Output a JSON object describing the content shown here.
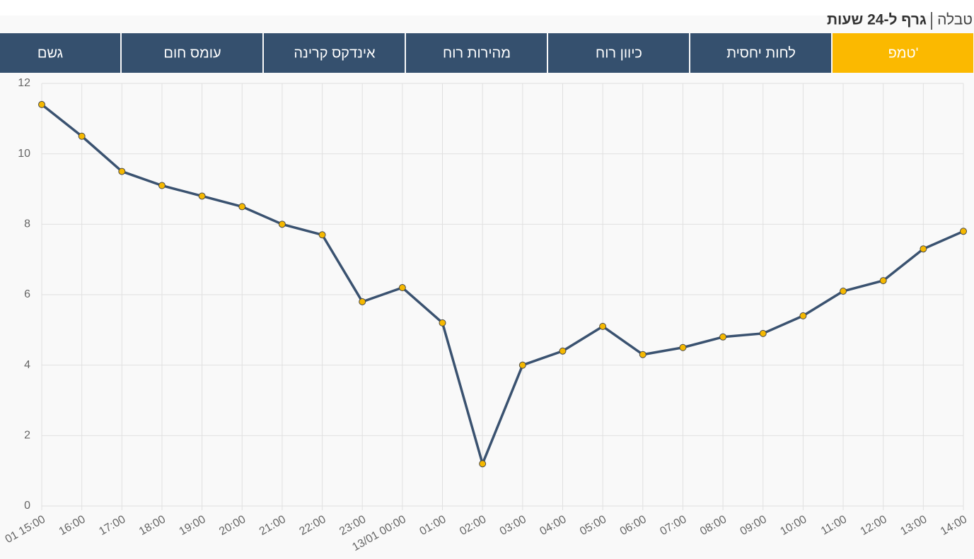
{
  "header": {
    "links": [
      "טבלה",
      "גרף ל-24 שעות"
    ],
    "active_link": 1
  },
  "tabs": {
    "items": [
      "טמפ'",
      "לחות יחסית",
      "כיוון רוח",
      "מהירות רוח",
      "אינדקס קרינה",
      "עומס חום",
      "גשם"
    ],
    "active": 0,
    "color": "#35506e",
    "active_color": "#fbb900"
  },
  "chart_data": {
    "type": "line",
    "categories": [
      "01 15:00",
      "16:00",
      "17:00",
      "18:00",
      "19:00",
      "20:00",
      "21:00",
      "22:00",
      "23:00",
      "13/01 00:00",
      "01:00",
      "02:00",
      "03:00",
      "04:00",
      "05:00",
      "06:00",
      "07:00",
      "08:00",
      "09:00",
      "10:00",
      "11:00",
      "12:00",
      "13:00",
      "14:00"
    ],
    "values": [
      11.4,
      10.5,
      9.5,
      9.1,
      8.8,
      8.5,
      8.0,
      7.7,
      5.8,
      6.2,
      5.2,
      1.2,
      4.0,
      4.4,
      5.1,
      4.3,
      4.5,
      4.8,
      4.9,
      5.4,
      6.1,
      6.4,
      7.3,
      7.8
    ],
    "color": "#3a5270",
    "marker_color": "#f5b800",
    "ylim": [
      0,
      12
    ],
    "yticks": [
      0,
      2,
      4,
      6,
      8,
      10,
      12
    ],
    "grid": true
  }
}
